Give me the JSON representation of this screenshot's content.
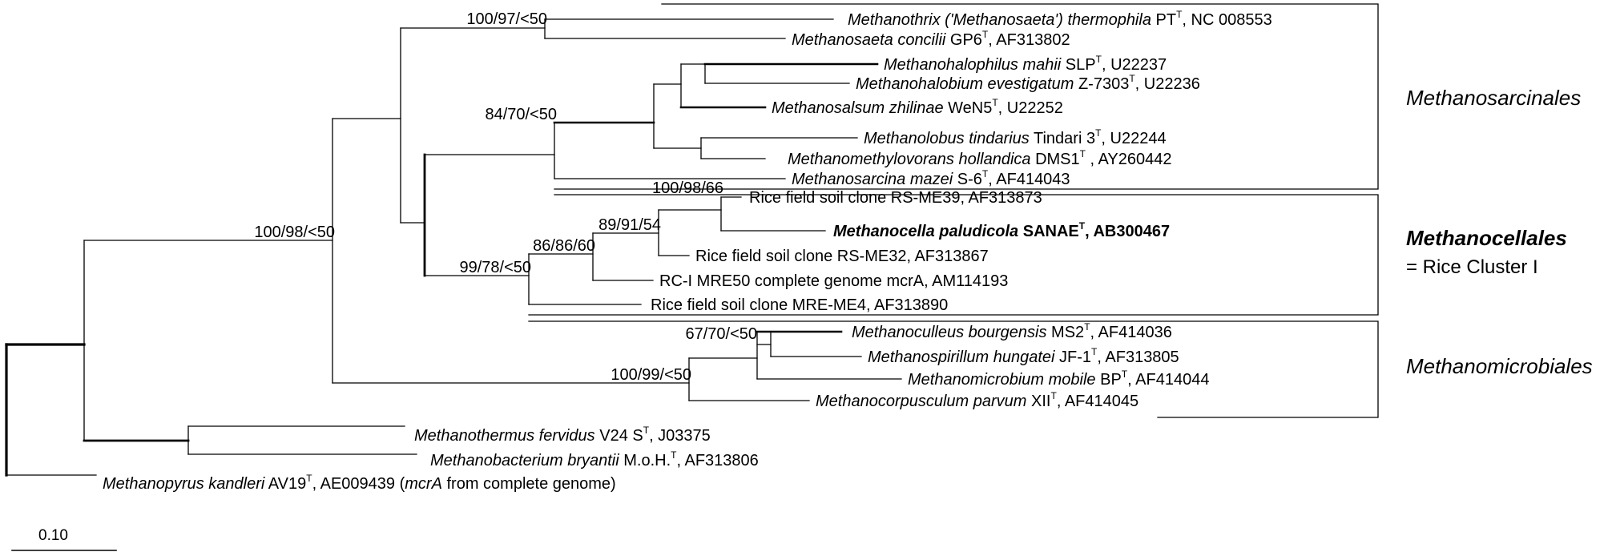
{
  "taxa": {
    "thermophila": {
      "italic": "Methanothrix ('Methanosaeta') thermophila",
      "strain": " PT",
      "sup": "T",
      "acc": ", NC 008553"
    },
    "concilii": {
      "italic": "Methanosaeta concilii",
      "strain": " GP6",
      "sup": "T",
      "acc": ", AF313802"
    },
    "mahii": {
      "italic": "Methanohalophilus mahii",
      "strain": " SLP",
      "sup": "T",
      "acc": ", U22237"
    },
    "evestigatum": {
      "italic": "Methanohalobium evestigatum",
      "strain": " Z-7303",
      "sup": "T",
      "acc": ", U22236"
    },
    "zhilinae": {
      "italic": "Methanosalsum zhilinae",
      "strain": " WeN5",
      "sup": "T",
      "acc": ", U22252"
    },
    "tindarius": {
      "italic": "Methanolobus tindarius",
      "strain": " Tindari 3",
      "sup": "T",
      "acc": ", U22244"
    },
    "hollandica": {
      "italic": "Methanomethylovorans hollandica",
      "strain": " DMS1",
      "sup": "T",
      "acc": " , AY260442"
    },
    "mazei": {
      "italic": "Methanosarcina mazei",
      "strain": " S-6",
      "sup": "T",
      "acc": ", AF414043"
    },
    "rsme39": {
      "text": "Rice field soil clone RS-ME39, AF313873"
    },
    "paludicola": {
      "italic": "Methanocella paludicola",
      "strain": " SANAE",
      "sup": "T",
      "acc": ", AB300467"
    },
    "rsme32": {
      "text": "Rice field soil clone RS-ME32, AF313867"
    },
    "mre50": {
      "text": "RC-I MRE50 complete genome mcrA, AM114193"
    },
    "mreme4": {
      "text": "Rice field soil clone MRE-ME4, AF313890"
    },
    "bourgensis": {
      "italic": "Methanoculleus bourgensis",
      "strain": " MS2",
      "sup": "T",
      "acc": ", AF414036"
    },
    "hungatei": {
      "italic": "Methanospirillum hungatei",
      "strain": " JF-1",
      "sup": "T",
      "acc": ", AF313805"
    },
    "mobile": {
      "italic": "Methanomicrobium mobile",
      "strain": " BP",
      "sup": "T",
      "acc": ", AF414044"
    },
    "parvum": {
      "italic": "Methanocorpusculum parvum",
      "strain": " XII",
      "sup": "T",
      "acc": ", AF414045"
    },
    "fervidus": {
      "italic": "Methanothermus fervidus",
      "strain": " V24 S",
      "sup": "T",
      "acc": ", J03375"
    },
    "bryantii": {
      "italic": "Methanobacterium bryantii",
      "strain": " M.o.H.",
      "sup": "T",
      "acc": ", AF313806"
    },
    "kandleri": {
      "italic": "Methanopyrus kandleri",
      "strain": " AV19",
      "sup": "T",
      "acc": ", AE009439 (",
      "italic2": "mcrA",
      "acc2": " from complete genome)"
    }
  },
  "support_values": {
    "saeta": "100/97/<50",
    "sarcina_core": "84/70/<50",
    "rs_me39": "100/98/66",
    "rc_inner": "89/91/54",
    "rc_mid": "86/86/60",
    "rc_outer": "99/78/<50",
    "main": "100/98/<50",
    "micro_inner": "67/70/<50",
    "micro_outer": "100/99/<50"
  },
  "clades": {
    "sarcinales": "Methanosarcinales",
    "cellales": "Methanocellales",
    "cellales_alias": "= Rice Cluster I",
    "microbiales": "Methanomicrobiales"
  },
  "scale_bar": {
    "label": "0.10"
  }
}
